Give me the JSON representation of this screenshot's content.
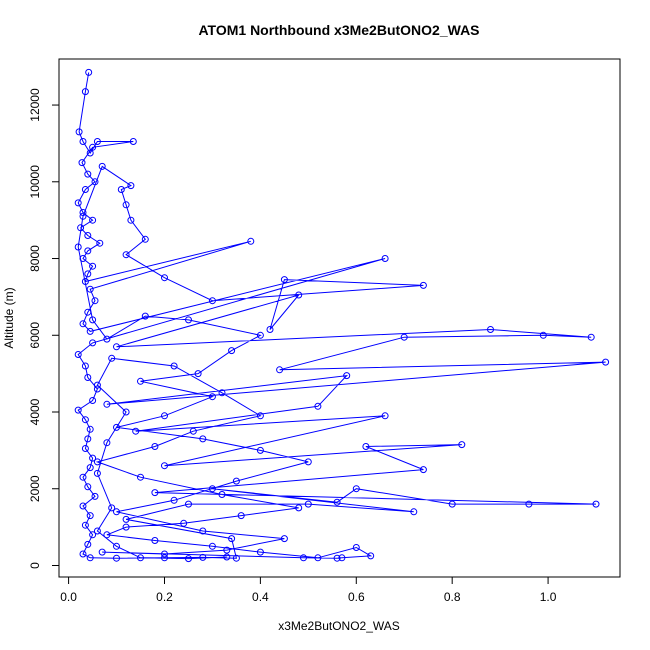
{
  "chart_data": {
    "type": "line",
    "title": "ATOM1 Northbound x3Me2ButONO2_WAS",
    "xlabel": "x3Me2ButONO2_WAS",
    "ylabel": "Altitude (m)",
    "xlim": [
      -0.02,
      1.15
    ],
    "ylim": [
      -300,
      13200
    ],
    "xticks": [
      0.0,
      0.2,
      0.4,
      0.6,
      0.8,
      1.0
    ],
    "xtick_labels": [
      "0.0",
      "0.2",
      "0.4",
      "0.6",
      "0.8",
      "1.0"
    ],
    "yticks": [
      0,
      2000,
      4000,
      6000,
      8000,
      10000,
      12000
    ],
    "ytick_labels": [
      "0",
      "2000",
      "4000",
      "6000",
      "8000",
      "10000",
      "12000"
    ],
    "grid": false,
    "series": [
      {
        "color": "#0000ff",
        "marker": "open-circle",
        "points": [
          [
            0.042,
            12850
          ],
          [
            0.035,
            12350
          ],
          [
            0.022,
            11300
          ],
          [
            0.03,
            11050
          ],
          [
            0.045,
            10750
          ],
          [
            0.06,
            11050
          ],
          [
            0.135,
            11050
          ],
          [
            0.05,
            10900
          ],
          [
            0.028,
            10500
          ],
          [
            0.04,
            10200
          ],
          [
            0.055,
            10000
          ],
          [
            0.035,
            9800
          ],
          [
            0.02,
            9450
          ],
          [
            0.03,
            9200
          ],
          [
            0.05,
            9000
          ],
          [
            0.025,
            8800
          ],
          [
            0.04,
            8600
          ],
          [
            0.065,
            8400
          ],
          [
            0.04,
            8200
          ],
          [
            0.03,
            8000
          ],
          [
            0.05,
            7800
          ],
          [
            0.04,
            7600
          ],
          [
            0.035,
            7400
          ],
          [
            0.38,
            8450
          ],
          [
            0.045,
            7200
          ],
          [
            0.055,
            6900
          ],
          [
            0.04,
            6600
          ],
          [
            0.03,
            6300
          ],
          [
            0.045,
            6100
          ],
          [
            0.66,
            8000
          ],
          [
            0.05,
            5800
          ],
          [
            0.02,
            5500
          ],
          [
            0.035,
            5200
          ],
          [
            0.04,
            4900
          ],
          [
            0.06,
            4600
          ],
          [
            0.05,
            4300
          ],
          [
            0.02,
            4050
          ],
          [
            0.035,
            3800
          ],
          [
            0.045,
            3550
          ],
          [
            0.04,
            3300
          ],
          [
            0.035,
            3050
          ],
          [
            0.05,
            2800
          ],
          [
            0.045,
            2550
          ],
          [
            0.03,
            2300
          ],
          [
            0.04,
            2050
          ],
          [
            0.055,
            1800
          ],
          [
            0.03,
            1550
          ],
          [
            0.045,
            1300
          ],
          [
            0.035,
            1050
          ],
          [
            0.05,
            800
          ],
          [
            0.04,
            550
          ],
          [
            0.03,
            300
          ],
          [
            0.045,
            200
          ],
          [
            0.1,
            190
          ],
          [
            0.2,
            200
          ],
          [
            0.28,
            210
          ],
          [
            0.35,
            190
          ],
          [
            0.34,
            700
          ],
          [
            0.12,
            1200
          ],
          [
            0.25,
            1600
          ],
          [
            0.5,
            1600
          ],
          [
            0.72,
            1400
          ],
          [
            0.3,
            2000
          ],
          [
            0.56,
            1650
          ],
          [
            0.6,
            2000
          ],
          [
            0.8,
            1600
          ],
          [
            0.96,
            1600
          ],
          [
            1.1,
            1600
          ],
          [
            0.18,
            1900
          ],
          [
            0.74,
            2500
          ],
          [
            0.62,
            3100
          ],
          [
            0.82,
            3150
          ],
          [
            0.2,
            2600
          ],
          [
            0.66,
            3900
          ],
          [
            0.14,
            3500
          ],
          [
            0.52,
            4150
          ],
          [
            0.58,
            4950
          ],
          [
            0.08,
            4200
          ],
          [
            1.12,
            5300
          ],
          [
            0.44,
            5100
          ],
          [
            0.7,
            5950
          ],
          [
            0.99,
            6000
          ],
          [
            1.09,
            5950
          ],
          [
            0.88,
            6150
          ],
          [
            0.1,
            5700
          ],
          [
            0.48,
            7050
          ],
          [
            0.42,
            6150
          ],
          [
            0.45,
            7450
          ],
          [
            0.74,
            7300
          ],
          [
            0.3,
            6900
          ],
          [
            0.2,
            7500
          ],
          [
            0.12,
            8100
          ],
          [
            0.16,
            8500
          ],
          [
            0.13,
            9000
          ],
          [
            0.12,
            9400
          ],
          [
            0.11,
            9800
          ],
          [
            0.13,
            9900
          ],
          [
            0.07,
            10400
          ],
          [
            0.03,
            9100
          ],
          [
            0.02,
            8300
          ],
          [
            0.05,
            6400
          ],
          [
            0.08,
            5900
          ],
          [
            0.16,
            6500
          ],
          [
            0.25,
            6400
          ],
          [
            0.4,
            6000
          ],
          [
            0.34,
            5600
          ],
          [
            0.27,
            5000
          ],
          [
            0.15,
            4800
          ],
          [
            0.3,
            4400
          ],
          [
            0.2,
            3900
          ],
          [
            0.1,
            3600
          ],
          [
            0.28,
            3300
          ],
          [
            0.4,
            3000
          ],
          [
            0.5,
            2700
          ],
          [
            0.35,
            2200
          ],
          [
            0.22,
            1700
          ],
          [
            0.1,
            1400
          ],
          [
            0.28,
            900
          ],
          [
            0.45,
            700
          ],
          [
            0.33,
            400
          ],
          [
            0.2,
            300
          ],
          [
            0.07,
            350
          ],
          [
            0.49,
            200
          ],
          [
            0.56,
            190
          ],
          [
            0.57,
            200
          ],
          [
            0.63,
            250
          ],
          [
            0.6,
            470
          ],
          [
            0.52,
            200
          ],
          [
            0.4,
            350
          ],
          [
            0.3,
            500
          ],
          [
            0.18,
            650
          ],
          [
            0.08,
            800
          ],
          [
            0.12,
            1000
          ],
          [
            0.24,
            1100
          ],
          [
            0.36,
            1300
          ],
          [
            0.48,
            1500
          ],
          [
            0.32,
            1850
          ],
          [
            0.15,
            2300
          ],
          [
            0.06,
            2700
          ],
          [
            0.18,
            3100
          ],
          [
            0.26,
            3500
          ],
          [
            0.4,
            3900
          ],
          [
            0.32,
            4500
          ],
          [
            0.22,
            5200
          ],
          [
            0.09,
            5400
          ],
          [
            0.06,
            4700
          ],
          [
            0.12,
            4000
          ],
          [
            0.08,
            3200
          ],
          [
            0.06,
            2400
          ],
          [
            0.09,
            1500
          ],
          [
            0.06,
            900
          ],
          [
            0.1,
            500
          ],
          [
            0.15,
            200
          ],
          [
            0.25,
            180
          ],
          [
            0.33,
            220
          ]
        ]
      }
    ]
  }
}
